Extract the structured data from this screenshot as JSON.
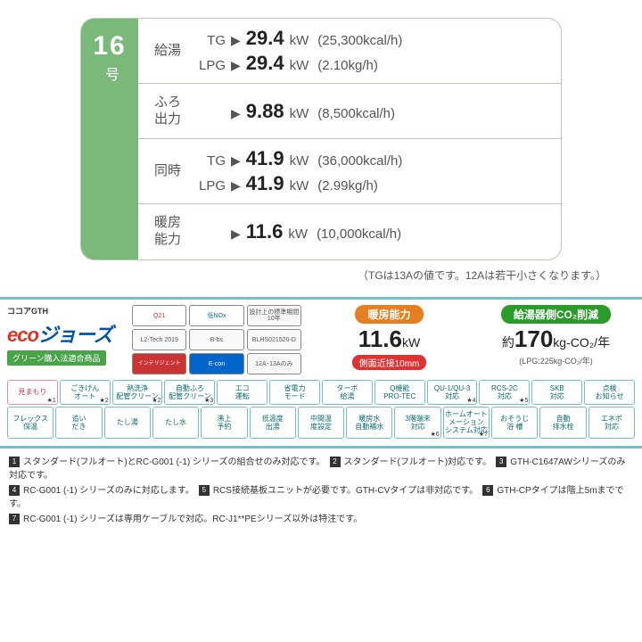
{
  "model": {
    "number": "16",
    "unit": "号"
  },
  "rows": [
    {
      "label": "給湯",
      "lines": [
        {
          "fuel": "TG",
          "value": "29.4",
          "unit": "kW",
          "paren": "(25,300kcal/h)"
        },
        {
          "fuel": "LPG",
          "value": "29.4",
          "unit": "kW",
          "paren": "(2.10kg/h)"
        }
      ]
    },
    {
      "label": "ふろ\n出力",
      "lines": [
        {
          "fuel": "",
          "value": "9.88",
          "unit": "kW",
          "paren": "(8,500kcal/h)"
        }
      ]
    },
    {
      "label": "同時",
      "lines": [
        {
          "fuel": "TG",
          "value": "41.9",
          "unit": "kW",
          "paren": "(36,000kcal/h)"
        },
        {
          "fuel": "LPG",
          "value": "41.9",
          "unit": "kW",
          "paren": "(2.99kg/h)"
        }
      ]
    },
    {
      "label": "暖房\n能力",
      "lines": [
        {
          "fuel": "",
          "value": "11.6",
          "unit": "kW",
          "paren": "(10,000kcal/h)"
        }
      ]
    }
  ],
  "table_note": "（TGは13Aの値です。12Aは若干小さくなります。）",
  "brand": {
    "prefix": "ココア",
    "suffix": "GTH",
    "eco1": "eco",
    "eco2": "ジョーズ",
    "green_law": "グリーン購入法適合商品"
  },
  "certs": [
    "Q21",
    "低NOx",
    "設計上の標準期間10年",
    "L2-Tech 2019",
    "B-bs",
    "BLHS021520-D",
    "インテリジェント",
    "E-con",
    "12A･13Aのみ"
  ],
  "heating": {
    "label": "暖房能力",
    "value": "11.6",
    "unit": "kW",
    "side": "側面近接10mm"
  },
  "co2": {
    "label": "給湯器側CO₂削減",
    "prefix": "約",
    "value": "170",
    "unit": "kg-CO₂/年",
    "sub": "(LPG:225kg-CO₂/年)"
  },
  "features_row1": [
    {
      "t": "見まもり",
      "s": "1",
      "pink": true
    },
    {
      "t": "ごきげん\nオート",
      "s": "2"
    },
    {
      "t": "熱洗浄\n配管クリーン",
      "s": "2"
    },
    {
      "t": "自動ふろ\n配管クリーン",
      "s": "3"
    },
    {
      "t": "エコ\n運転"
    },
    {
      "t": "省電力\nモード"
    },
    {
      "t": "ターボ\n給湯"
    },
    {
      "t": "Q機能\nPRO-TEC"
    },
    {
      "t": "QU-1/QU-3\n対応",
      "s": "4"
    },
    {
      "t": "RCS-2C\n対応",
      "s": "5"
    },
    {
      "t": "SKB\n対応"
    },
    {
      "t": "点検\nお知らせ"
    }
  ],
  "features_row2": [
    {
      "t": "フレックス\n保温"
    },
    {
      "t": "追い\nだき"
    },
    {
      "t": "たし湯"
    },
    {
      "t": "たし水"
    },
    {
      "t": "沸上\n予約"
    },
    {
      "t": "低温度\n出湯"
    },
    {
      "t": "中間温\n度設定"
    },
    {
      "t": "暖房水\n自動補水"
    },
    {
      "t": "3階端末\n対応",
      "s": "6"
    },
    {
      "t": "ホームオートメーション\nシステム対応",
      "s": "7"
    },
    {
      "t": "おそうじ\n浴 槽"
    },
    {
      "t": "自動\n排水栓"
    },
    {
      "t": "エネポ\n対応"
    }
  ],
  "footnotes": [
    {
      "n": "1",
      "t": "スタンダード(フルオート)とRC-G001 (-1) シリーズの組合せのみ対応です。"
    },
    {
      "n": "2",
      "t": "スタンダード(フルオート)対応です。"
    },
    {
      "n": "3",
      "t": "GTH-C1647AWシリーズのみ対応です。"
    },
    {
      "n": "4",
      "t": "RC-G001 (-1) シリーズのみに対応します。"
    },
    {
      "n": "5",
      "t": "RCS接続基板ユニットが必要です。GTH-CVタイプは非対応です。"
    },
    {
      "n": "6",
      "t": "GTH-CPタイプは階上5mまでです。"
    },
    {
      "n": "7",
      "t": "RC-G001 (-1) シリーズは専用ケーブルで対応。RC-J1**PEシリーズ以外は特注です。"
    }
  ]
}
